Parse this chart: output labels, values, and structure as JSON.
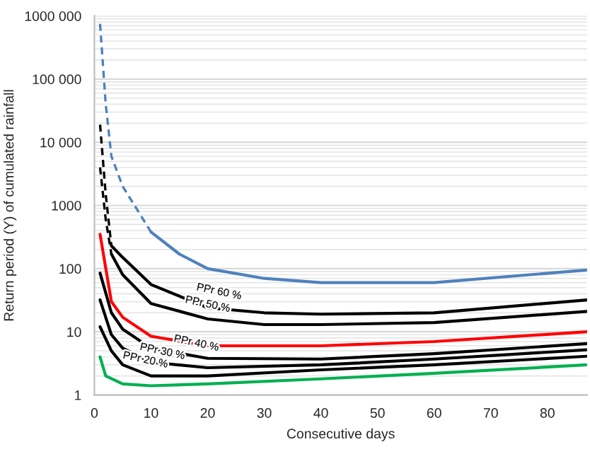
{
  "chart_data": {
    "type": "line",
    "xlabel": "Consecutive days",
    "ylabel": "Return period (Y) of cumulated rainfall",
    "log": "y",
    "grid": "y",
    "xlim": [
      0,
      87
    ],
    "xticks": [
      0,
      10,
      20,
      30,
      40,
      50,
      60,
      70,
      80
    ],
    "ylim": [
      1,
      1000000
    ],
    "yticks": [
      1,
      10,
      100,
      {
        "value": 1000,
        "label": "1000"
      },
      {
        "value": 10000,
        "label": "10 000"
      },
      {
        "value": 100000,
        "label": "100 000"
      },
      {
        "value": 1000000,
        "label": "1000 000"
      }
    ],
    "series": [
      {
        "color": "#4f81bd",
        "line_style": "dashed",
        "x": [
          1,
          2,
          3,
          5,
          10
        ],
        "values": [
          750000,
          40000,
          6000,
          2000,
          380
        ]
      },
      {
        "color": "#4f81bd",
        "line_style": "solid",
        "x": [
          10,
          15,
          20,
          30,
          40,
          50,
          60,
          87
        ],
        "values": [
          380,
          170,
          100,
          70,
          60,
          60,
          60,
          95
        ]
      },
      {
        "color": "#000000",
        "line_style": "dashed",
        "x": [
          1,
          2,
          3
        ],
        "values": [
          19000,
          1500,
          230
        ]
      },
      {
        "color": "#000000",
        "line_style": "solid",
        "x": [
          3,
          5,
          10,
          20,
          30,
          40,
          60,
          87
        ],
        "values": [
          230,
          150,
          56,
          24,
          20,
          19,
          20,
          32
        ]
      },
      {
        "color": "#000000",
        "line_style": "dashed",
        "x": [
          1,
          2,
          3
        ],
        "values": [
          4000,
          600,
          170
        ]
      },
      {
        "color": "#000000",
        "line_style": "solid",
        "x": [
          3,
          5,
          10,
          20,
          30,
          40,
          60,
          87
        ],
        "values": [
          170,
          80,
          28,
          16,
          13,
          13,
          14,
          21
        ]
      },
      {
        "color": "#ff0000",
        "line_style": "solid",
        "x": [
          1,
          3,
          5,
          10,
          20,
          40,
          60,
          87
        ],
        "values": [
          350,
          30,
          17,
          8.5,
          6,
          6,
          7,
          10
        ]
      },
      {
        "color": "#000000",
        "line_style": "solid",
        "x": [
          1,
          3,
          5,
          10,
          20,
          40,
          60,
          87
        ],
        "values": [
          85,
          20,
          11,
          5.5,
          3.8,
          3.7,
          4.5,
          6.5
        ]
      },
      {
        "color": "#000000",
        "line_style": "solid",
        "x": [
          1,
          3,
          5,
          10,
          20,
          40,
          60,
          87
        ],
        "values": [
          32,
          9,
          5.5,
          3.3,
          2.7,
          3,
          3.7,
          5.2
        ]
      },
      {
        "color": "#000000",
        "line_style": "solid",
        "x": [
          1,
          3,
          5,
          10,
          20,
          40,
          60,
          87
        ],
        "values": [
          12,
          5,
          3,
          2,
          2,
          2.5,
          3,
          4.1
        ]
      },
      {
        "color": "#00b050",
        "line_style": "solid",
        "x": [
          1,
          2,
          5,
          10,
          20,
          40,
          60,
          87
        ],
        "values": [
          4,
          2,
          1.5,
          1.4,
          1.5,
          1.8,
          2.2,
          3
        ]
      }
    ],
    "annotations": [
      {
        "text": "PPr 60 %",
        "x": 22,
        "y": 30
      },
      {
        "text": "PPr 50 %",
        "x": 20,
        "y": 19
      },
      {
        "text": "PPr 40 %",
        "x": 18,
        "y": 4.6
      },
      {
        "text": "PPr 30 %",
        "x": 12,
        "y": 3.4
      },
      {
        "text": "PPr 20 %",
        "x": 9,
        "y": 2.5
      }
    ]
  }
}
